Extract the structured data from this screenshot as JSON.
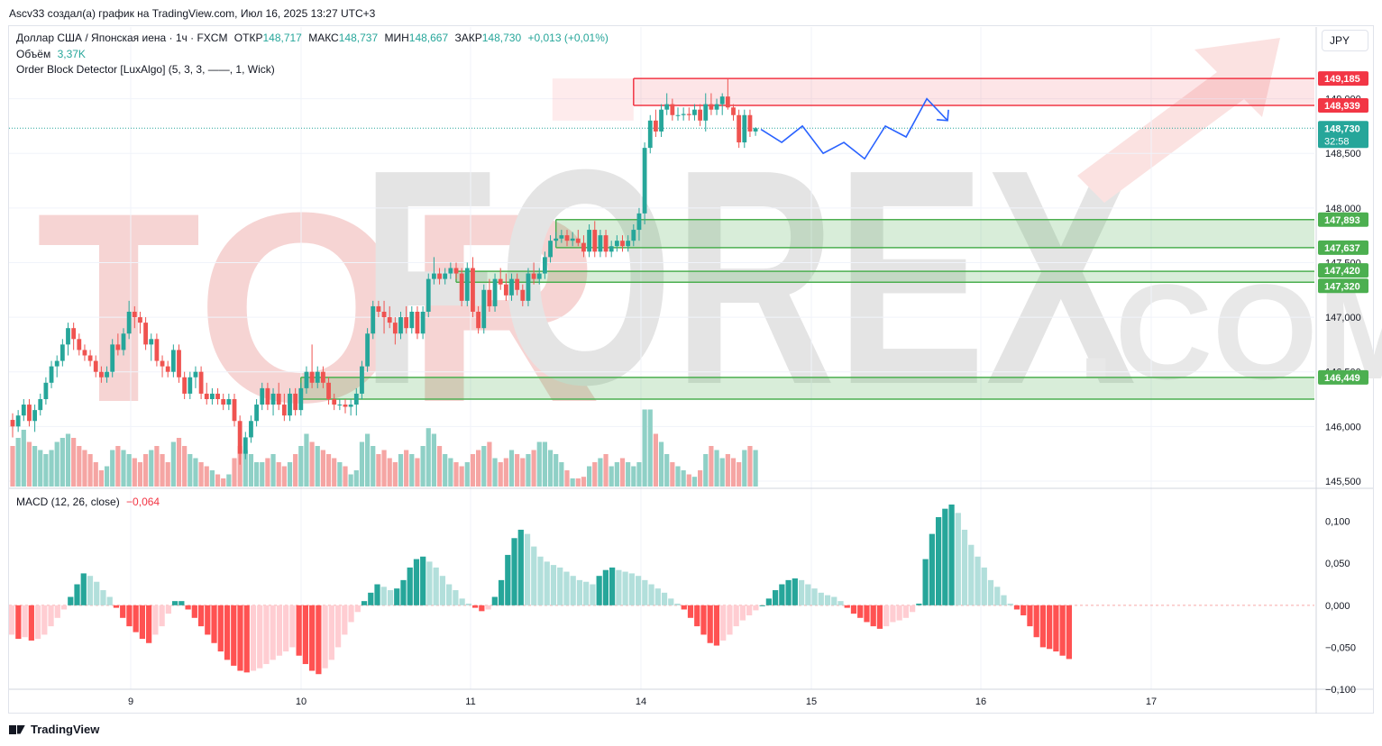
{
  "header": {
    "author_line": "Ascv33 создал(а) график на TradingView.com, Июл 16, 2025 13:27 UTC+3"
  },
  "legend": {
    "symbol": "Доллар США / Японская иена · 1ч · FXCM",
    "open_label": "ОТКР",
    "open": "148,717",
    "high_label": "МАКС",
    "high": "148,737",
    "low_label": "МИН",
    "low": "148,667",
    "close_label": "ЗАКР",
    "close": "148,730",
    "change": "+0,013 (+0,01%)",
    "volume_label": "Объём",
    "volume": "3,37K",
    "indicator": "Order Block Detector [LuxAlgo] (5, 3, 3, ——, 1, Wick)",
    "macd_label": "MACD (12, 26, close)",
    "macd_value": "−0,064"
  },
  "currency_button": "JPY",
  "watermark": {
    "part1": "TOR",
    "part2": "FOREX",
    "part3": ".COM"
  },
  "footer": {
    "brand": "TradingView"
  },
  "colors": {
    "up": "#26a69a",
    "down": "#ef5350",
    "vol_up": "#8fd0c6",
    "vol_down": "#f5a5a3",
    "zone_bear": "#f23645",
    "zone_bull": "#4caf50",
    "projection": "#2962ff"
  },
  "chart_data": {
    "type": "candlestick",
    "symbol": "USD/JPY",
    "timeframe": "1h",
    "price_range": [
      145.45,
      149.45
    ],
    "price_ticks": [
      "149,000",
      "148,500",
      "148,000",
      "147,500",
      "147,000",
      "146,500",
      "146,000",
      "145,500"
    ],
    "x_labels": [
      "9",
      "10",
      "11",
      "14",
      "15",
      "16",
      "17"
    ],
    "price_tags": [
      {
        "label": "149,185",
        "value": 149.185,
        "type": "bear"
      },
      {
        "label": "148,939",
        "value": 148.939,
        "type": "bear"
      },
      {
        "label": "148,730",
        "value": 148.73,
        "type": "last",
        "timer": "32:58"
      },
      {
        "label": "147,893",
        "value": 147.893,
        "type": "bull"
      },
      {
        "label": "147,637",
        "value": 147.637,
        "type": "bull"
      },
      {
        "label": "147,420",
        "value": 147.42,
        "type": "bull"
      },
      {
        "label": "147,320",
        "value": 147.32,
        "type": "bull"
      },
      {
        "label": "146,449",
        "value": 146.449,
        "type": "bull"
      }
    ],
    "order_blocks": [
      {
        "kind": "bearish",
        "top": 149.185,
        "bottom": 148.939,
        "start_bar": 112
      },
      {
        "kind": "bullish",
        "top": 147.893,
        "bottom": 147.637,
        "start_bar": 98
      },
      {
        "kind": "bullish",
        "top": 147.42,
        "bottom": 147.32,
        "start_bar": 80
      },
      {
        "kind": "bullish",
        "top": 146.449,
        "bottom": 146.25,
        "start_bar": 52
      }
    ],
    "candles": [
      [
        146.06,
        146.12,
        145.9,
        146.0
      ],
      [
        146.0,
        146.15,
        145.95,
        146.1
      ],
      [
        146.1,
        146.25,
        146.05,
        146.2
      ],
      [
        146.2,
        146.25,
        146.0,
        146.05
      ],
      [
        146.05,
        146.2,
        145.95,
        146.15
      ],
      [
        146.15,
        146.3,
        146.1,
        146.25
      ],
      [
        146.25,
        146.45,
        146.2,
        146.4
      ],
      [
        146.4,
        146.6,
        146.35,
        146.55
      ],
      [
        146.55,
        146.65,
        146.45,
        146.6
      ],
      [
        146.6,
        146.8,
        146.55,
        146.75
      ],
      [
        146.75,
        146.95,
        146.65,
        146.9
      ],
      [
        146.9,
        146.95,
        146.7,
        146.8
      ],
      [
        146.8,
        146.85,
        146.65,
        146.7
      ],
      [
        146.7,
        146.75,
        146.6,
        146.65
      ],
      [
        146.65,
        146.7,
        146.55,
        146.6
      ],
      [
        146.6,
        146.65,
        146.45,
        146.5
      ],
      [
        146.5,
        146.55,
        146.4,
        146.45
      ],
      [
        146.45,
        146.55,
        146.4,
        146.5
      ],
      [
        146.5,
        146.8,
        146.45,
        146.75
      ],
      [
        146.75,
        146.85,
        146.65,
        146.7
      ],
      [
        146.7,
        146.9,
        146.65,
        146.85
      ],
      [
        146.85,
        147.15,
        146.8,
        147.05
      ],
      [
        147.05,
        147.1,
        146.9,
        147.0
      ],
      [
        147.0,
        147.05,
        146.85,
        146.95
      ],
      [
        146.95,
        147.0,
        146.7,
        146.75
      ],
      [
        146.75,
        146.85,
        146.6,
        146.8
      ],
      [
        146.8,
        146.85,
        146.55,
        146.6
      ],
      [
        146.6,
        146.65,
        146.45,
        146.55
      ],
      [
        146.55,
        146.6,
        146.45,
        146.5
      ],
      [
        146.5,
        146.75,
        146.45,
        146.7
      ],
      [
        146.7,
        146.75,
        146.4,
        146.45
      ],
      [
        146.45,
        146.5,
        146.25,
        146.3
      ],
      [
        146.3,
        146.5,
        146.25,
        146.45
      ],
      [
        146.45,
        146.55,
        146.35,
        146.5
      ],
      [
        146.5,
        146.55,
        146.25,
        146.3
      ],
      [
        146.3,
        146.4,
        146.2,
        146.25
      ],
      [
        146.25,
        146.35,
        146.2,
        146.3
      ],
      [
        146.3,
        146.35,
        146.2,
        146.25
      ],
      [
        146.25,
        146.3,
        146.15,
        146.2
      ],
      [
        146.2,
        146.3,
        146.15,
        146.25
      ],
      [
        146.25,
        146.3,
        146.0,
        146.05
      ],
      [
        146.05,
        146.1,
        145.65,
        145.75
      ],
      [
        145.75,
        145.95,
        145.7,
        145.9
      ],
      [
        145.9,
        146.1,
        145.85,
        146.05
      ],
      [
        146.05,
        146.25,
        146.0,
        146.2
      ],
      [
        146.2,
        146.4,
        146.15,
        146.35
      ],
      [
        146.35,
        146.4,
        146.15,
        146.2
      ],
      [
        146.2,
        146.35,
        146.1,
        146.3
      ],
      [
        146.3,
        146.4,
        146.15,
        146.2
      ],
      [
        146.2,
        146.3,
        146.05,
        146.1
      ],
      [
        146.1,
        146.35,
        146.05,
        146.3
      ],
      [
        146.3,
        146.35,
        146.1,
        146.15
      ],
      [
        146.15,
        146.4,
        146.1,
        146.35
      ],
      [
        146.35,
        146.55,
        146.3,
        146.5
      ],
      [
        146.5,
        146.75,
        146.35,
        146.4
      ],
      [
        146.4,
        146.55,
        146.35,
        146.5
      ],
      [
        146.5,
        146.55,
        146.35,
        146.4
      ],
      [
        146.4,
        146.45,
        146.2,
        146.25
      ],
      [
        146.25,
        146.3,
        146.15,
        146.2
      ],
      [
        146.2,
        146.25,
        146.15,
        146.2
      ],
      [
        146.2,
        146.25,
        146.12,
        146.18
      ],
      [
        146.18,
        146.25,
        146.1,
        146.2
      ],
      [
        146.2,
        146.35,
        146.1,
        146.3
      ],
      [
        146.3,
        146.6,
        146.25,
        146.55
      ],
      [
        146.55,
        146.9,
        146.5,
        146.85
      ],
      [
        146.85,
        147.15,
        146.8,
        147.1
      ],
      [
        147.1,
        147.15,
        147.0,
        147.05
      ],
      [
        147.05,
        147.15,
        146.85,
        147.0
      ],
      [
        147.0,
        147.1,
        146.9,
        146.95
      ],
      [
        146.95,
        147.0,
        146.75,
        146.85
      ],
      [
        146.85,
        147.05,
        146.8,
        147.0
      ],
      [
        147.0,
        147.1,
        146.85,
        146.9
      ],
      [
        146.9,
        147.1,
        146.85,
        147.05
      ],
      [
        147.05,
        147.1,
        146.8,
        146.85
      ],
      [
        146.85,
        147.1,
        146.8,
        147.05
      ],
      [
        147.05,
        147.4,
        147.0,
        147.35
      ],
      [
        147.35,
        147.55,
        147.3,
        147.4
      ],
      [
        147.4,
        147.45,
        147.3,
        147.35
      ],
      [
        147.35,
        147.45,
        147.3,
        147.4
      ],
      [
        147.4,
        147.5,
        147.35,
        147.45
      ],
      [
        147.45,
        147.5,
        147.35,
        147.4
      ],
      [
        147.4,
        147.45,
        147.1,
        147.15
      ],
      [
        147.15,
        147.5,
        147.1,
        147.45
      ],
      [
        147.45,
        147.55,
        147.0,
        147.05
      ],
      [
        147.05,
        147.1,
        146.85,
        146.9
      ],
      [
        146.9,
        147.3,
        146.85,
        147.25
      ],
      [
        147.25,
        147.35,
        147.05,
        147.1
      ],
      [
        147.1,
        147.4,
        147.05,
        147.35
      ],
      [
        147.35,
        147.45,
        147.25,
        147.3
      ],
      [
        147.3,
        147.4,
        147.15,
        147.2
      ],
      [
        147.2,
        147.4,
        147.15,
        147.35
      ],
      [
        147.35,
        147.4,
        147.2,
        147.25
      ],
      [
        147.25,
        147.3,
        147.1,
        147.15
      ],
      [
        147.15,
        147.45,
        147.1,
        147.4
      ],
      [
        147.4,
        147.5,
        147.3,
        147.35
      ],
      [
        147.35,
        147.45,
        147.3,
        147.4
      ],
      [
        147.4,
        147.6,
        147.35,
        147.55
      ],
      [
        147.55,
        147.75,
        147.5,
        147.7
      ],
      [
        147.7,
        147.78,
        147.65,
        147.72
      ],
      [
        147.72,
        147.8,
        147.68,
        147.75
      ],
      [
        147.75,
        147.8,
        147.65,
        147.7
      ],
      [
        147.7,
        147.78,
        147.65,
        147.72
      ],
      [
        147.72,
        147.8,
        147.65,
        147.68
      ],
      [
        147.68,
        147.75,
        147.55,
        147.6
      ],
      [
        147.6,
        147.85,
        147.55,
        147.8
      ],
      [
        147.8,
        147.88,
        147.55,
        147.6
      ],
      [
        147.6,
        147.8,
        147.55,
        147.75
      ],
      [
        147.75,
        147.8,
        147.55,
        147.6
      ],
      [
        147.6,
        147.7,
        147.55,
        147.65
      ],
      [
        147.65,
        147.75,
        147.6,
        147.7
      ],
      [
        147.7,
        147.75,
        147.6,
        147.65
      ],
      [
        147.65,
        147.75,
        147.6,
        147.7
      ],
      [
        147.7,
        147.85,
        147.65,
        147.8
      ],
      [
        147.8,
        148.0,
        147.7,
        147.95
      ],
      [
        147.95,
        148.6,
        147.85,
        148.55
      ],
      [
        148.55,
        148.85,
        148.5,
        148.8
      ],
      [
        148.8,
        148.9,
        148.65,
        148.7
      ],
      [
        148.7,
        148.95,
        148.65,
        148.9
      ],
      [
        148.9,
        149.05,
        148.85,
        148.95
      ],
      [
        148.95,
        149.0,
        148.8,
        148.85
      ],
      [
        148.85,
        148.92,
        148.8,
        148.85
      ],
      [
        148.85,
        148.92,
        148.8,
        148.86
      ],
      [
        148.86,
        148.92,
        148.8,
        148.85
      ],
      [
        148.85,
        148.95,
        148.8,
        148.9
      ],
      [
        148.9,
        148.95,
        148.75,
        148.8
      ],
      [
        148.8,
        149.05,
        148.7,
        148.95
      ],
      [
        148.95,
        149.05,
        148.85,
        148.9
      ],
      [
        148.9,
        149.0,
        148.85,
        148.95
      ],
      [
        148.95,
        149.05,
        148.85,
        149.02
      ],
      [
        149.02,
        149.18,
        148.9,
        148.92
      ],
      [
        148.92,
        148.95,
        148.8,
        148.85
      ],
      [
        148.85,
        148.9,
        148.55,
        148.6
      ],
      [
        148.6,
        148.9,
        148.55,
        148.85
      ],
      [
        148.85,
        148.9,
        148.65,
        148.7
      ],
      [
        148.7,
        148.74,
        148.66,
        148.73
      ]
    ],
    "volumes": [
      0.5,
      0.6,
      0.7,
      0.55,
      0.5,
      0.45,
      0.4,
      0.45,
      0.55,
      0.6,
      0.65,
      0.6,
      0.5,
      0.45,
      0.4,
      0.3,
      0.2,
      0.25,
      0.45,
      0.5,
      0.45,
      0.4,
      0.35,
      0.3,
      0.4,
      0.45,
      0.5,
      0.4,
      0.3,
      0.55,
      0.6,
      0.5,
      0.4,
      0.35,
      0.3,
      0.25,
      0.2,
      0.15,
      0.1,
      0.15,
      0.35,
      0.5,
      0.45,
      0.4,
      0.3,
      0.3,
      0.35,
      0.4,
      0.3,
      0.25,
      0.3,
      0.4,
      0.5,
      0.65,
      0.55,
      0.5,
      0.45,
      0.4,
      0.35,
      0.3,
      0.25,
      0.15,
      0.2,
      0.55,
      0.65,
      0.5,
      0.4,
      0.45,
      0.35,
      0.3,
      0.4,
      0.45,
      0.4,
      0.35,
      0.5,
      0.72,
      0.65,
      0.5,
      0.4,
      0.35,
      0.3,
      0.25,
      0.3,
      0.4,
      0.45,
      0.5,
      0.55,
      0.35,
      0.3,
      0.35,
      0.45,
      0.4,
      0.35,
      0.4,
      0.45,
      0.55,
      0.55,
      0.45,
      0.4,
      0.3,
      0.2,
      0.1,
      0.1,
      0.12,
      0.25,
      0.3,
      0.35,
      0.4,
      0.25,
      0.3,
      0.35,
      0.3,
      0.25,
      0.3,
      0.95,
      0.95,
      0.65,
      0.55,
      0.4,
      0.3,
      0.25,
      0.2,
      0.15,
      0.12,
      0.2,
      0.4,
      0.5,
      0.45,
      0.35,
      0.4,
      0.35,
      0.3,
      0.45,
      0.5,
      0.45,
      0.4,
      0.15
    ],
    "macd_range": [
      -0.1,
      0.12
    ],
    "macd_ticks": [
      "0,100",
      "0,050",
      "0,000",
      "−0,050",
      "−0,100"
    ],
    "macd_histogram": [
      -0.035,
      -0.04,
      -0.038,
      -0.042,
      -0.04,
      -0.035,
      -0.025,
      -0.015,
      -0.005,
      0.01,
      0.025,
      0.038,
      0.035,
      0.028,
      0.018,
      0.01,
      -0.003,
      -0.015,
      -0.025,
      -0.032,
      -0.04,
      -0.045,
      -0.035,
      -0.025,
      -0.01,
      0.005,
      0.005,
      -0.005,
      -0.015,
      -0.025,
      -0.035,
      -0.045,
      -0.055,
      -0.065,
      -0.072,
      -0.078,
      -0.08,
      -0.078,
      -0.075,
      -0.07,
      -0.065,
      -0.06,
      -0.055,
      -0.05,
      -0.06,
      -0.07,
      -0.078,
      -0.082,
      -0.075,
      -0.065,
      -0.05,
      -0.035,
      -0.02,
      -0.008,
      0.005,
      0.015,
      0.025,
      0.022,
      0.018,
      0.02,
      0.03,
      0.045,
      0.055,
      0.058,
      0.052,
      0.045,
      0.035,
      0.025,
      0.018,
      0.008,
      0.002,
      -0.003,
      -0.007,
      -0.005,
      0.01,
      0.03,
      0.06,
      0.08,
      0.09,
      0.085,
      0.07,
      0.058,
      0.052,
      0.048,
      0.045,
      0.04,
      0.035,
      0.03,
      0.028,
      0.025,
      0.035,
      0.042,
      0.045,
      0.042,
      0.04,
      0.038,
      0.035,
      0.03,
      0.025,
      0.02,
      0.015,
      0.008,
      0.002,
      -0.005,
      -0.015,
      -0.025,
      -0.035,
      -0.045,
      -0.048,
      -0.042,
      -0.035,
      -0.025,
      -0.018,
      -0.012,
      -0.006,
      0.0,
      0.008,
      0.018,
      0.025,
      0.03,
      0.032,
      0.03,
      0.025,
      0.02,
      0.015,
      0.012,
      0.01,
      0.005,
      -0.003,
      -0.01,
      -0.015,
      -0.02,
      -0.025,
      -0.028,
      -0.025,
      -0.02,
      -0.018,
      -0.015,
      -0.008,
      0.002,
      0.055,
      0.085,
      0.105,
      0.115,
      0.12,
      0.11,
      0.09,
      0.072,
      0.058,
      0.045,
      0.03,
      0.022,
      0.012,
      0.002,
      -0.005,
      -0.012,
      -0.025,
      -0.038,
      -0.05,
      -0.052,
      -0.055,
      -0.06,
      -0.064
    ],
    "projection_path": [
      [
        148.72,
        0
      ],
      [
        148.6,
        1
      ],
      [
        148.75,
        2
      ],
      [
        148.5,
        3
      ],
      [
        148.6,
        4
      ],
      [
        148.45,
        5
      ],
      [
        148.75,
        6
      ],
      [
        148.65,
        7
      ],
      [
        149.0,
        8
      ],
      [
        148.8,
        9
      ]
    ]
  }
}
